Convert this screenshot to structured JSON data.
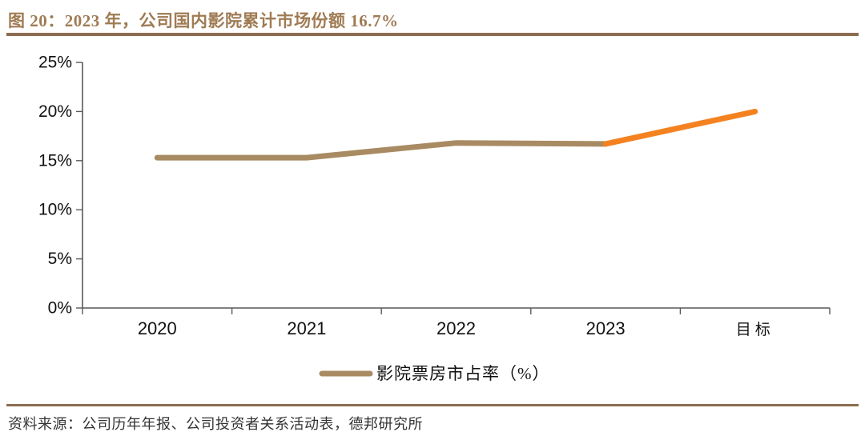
{
  "header": {
    "title": "图 20：2023 年，公司国内影院累计市场份额 16.7%"
  },
  "footer": {
    "source": "资料来源：公司历年年报、公司投资者关系活动表，德邦研究所"
  },
  "colors": {
    "title_text": "#9F7B53",
    "rule": "#8C6D50",
    "axis": "#595959",
    "tick_label": "#111111",
    "line_main": "#A98B63",
    "line_target": "#F58220"
  },
  "chart_data": {
    "type": "line",
    "title": "图 20：2023 年，公司国内影院累计市场份额 16.7%",
    "categories": [
      "2020",
      "2021",
      "2022",
      "2023",
      "目标"
    ],
    "series": [
      {
        "id": "main",
        "name": "影院票房市占率（%）",
        "color": "#A98B63",
        "points": [
          {
            "x": "2020",
            "y": 15.3
          },
          {
            "x": "2021",
            "y": 15.3
          },
          {
            "x": "2022",
            "y": 16.8
          },
          {
            "x": "2023",
            "y": 16.7
          }
        ]
      },
      {
        "id": "target",
        "name": "目标",
        "color": "#F58220",
        "points": [
          {
            "x": "2023",
            "y": 16.7
          },
          {
            "x": "目标",
            "y": 20.0
          }
        ]
      }
    ],
    "xlabel": "",
    "ylabel": "",
    "ylim": [
      0,
      25
    ],
    "yticks": [
      "0%",
      "5%",
      "10%",
      "15%",
      "20%",
      "25%"
    ],
    "ytick_values": [
      0,
      5,
      10,
      15,
      20,
      25
    ],
    "grid": false,
    "legend_position": "bottom-center",
    "legend": [
      {
        "label": "影院票房市占率（%）",
        "color": "#A98B63"
      }
    ]
  }
}
